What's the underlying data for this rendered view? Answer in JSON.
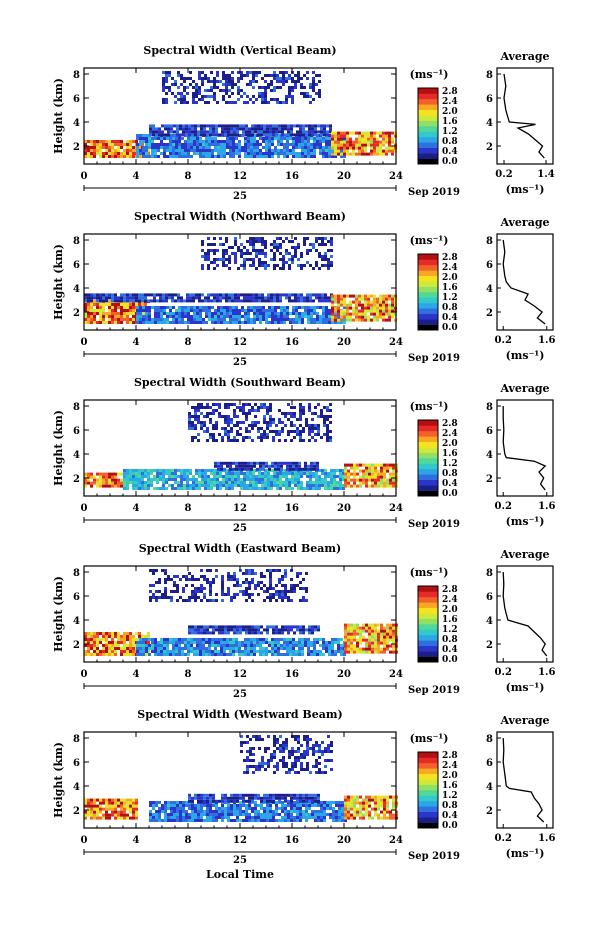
{
  "figure": {
    "x_axis_title": "Local Time",
    "date_label": "Sep 2019",
    "day_label": "25",
    "colorbar_unit": "(ms⁻¹)",
    "colorbar_ticks": [
      "0.0",
      "0.4",
      "0.8",
      "1.2",
      "1.6",
      "2.0",
      "2.4",
      "2.8"
    ],
    "colorscale": [
      "#000000",
      "#1b1f8a",
      "#2b35c9",
      "#2f6fe0",
      "#2ba6e6",
      "#33c9c9",
      "#4fd89a",
      "#8fe064",
      "#d0e83a",
      "#f6e21f",
      "#f9a823",
      "#f2612a",
      "#e52a2a",
      "#b40f12"
    ],
    "x_ticks": [
      "0",
      "4",
      "8",
      "12",
      "16",
      "20",
      "24"
    ],
    "y_ticks": [
      "2",
      "4",
      "6",
      "8"
    ],
    "avg_y_ticks": [
      "2",
      "4",
      "6",
      "8"
    ]
  },
  "panels": [
    {
      "title": "Spectral Width (Vertical Beam)",
      "ylabel": "Height (km)",
      "avg_title": "Average",
      "avg_xlabel": "(ms⁻¹)",
      "avg_xticks": [
        "0.2",
        "1.4"
      ]
    },
    {
      "title": "Spectral Width (Northward Beam)",
      "ylabel": "Height (km)",
      "avg_title": "Average",
      "avg_xlabel": "(ms⁻¹)",
      "avg_xticks": [
        "0.2",
        "1.6"
      ]
    },
    {
      "title": "Spectral Width (Southward Beam)",
      "ylabel": "Height (km)",
      "avg_title": "Average",
      "avg_xlabel": "(ms⁻¹)",
      "avg_xticks": [
        "0.2",
        "1.6"
      ]
    },
    {
      "title": "Spectral Width (Eastward Beam)",
      "ylabel": "Height (km)",
      "avg_title": "Average",
      "avg_xlabel": "(ms⁻¹)",
      "avg_xticks": [
        "0.2",
        "1.6"
      ]
    },
    {
      "title": "Spectral Width (Westward Beam)",
      "ylabel": "Height (km)",
      "avg_title": "Average",
      "avg_xlabel": "(ms⁻¹)",
      "avg_xticks": [
        "0.2",
        "1.6"
      ]
    }
  ],
  "chart_data": [
    {
      "type": "heatmap",
      "title": "Spectral Width (Vertical Beam)",
      "xlabel": "",
      "ylabel": "Height (km)",
      "xlim": [
        0,
        24
      ],
      "ylim": [
        0.5,
        8.5
      ],
      "clim": [
        0,
        3.0
      ],
      "layers": [
        {
          "t0": 0,
          "t1": 5,
          "h0": 1.0,
          "h1": 2.5,
          "width": 2.4
        },
        {
          "t0": 4,
          "t1": 20,
          "h0": 1.0,
          "h1": 2.8,
          "width": 0.6
        },
        {
          "t0": 5,
          "t1": 19,
          "h0": 2.8,
          "h1": 3.6,
          "width": 0.3
        },
        {
          "t0": 19,
          "t1": 24,
          "h0": 1.2,
          "h1": 3.2,
          "width": 2.3
        },
        {
          "t0": 6,
          "t1": 18,
          "h0": 5.5,
          "h1": 8.2,
          "width": 0.2
        }
      ],
      "average": {
        "height": [
          1.0,
          1.5,
          2.0,
          2.5,
          3.0,
          3.5,
          3.8,
          4.0,
          4.5,
          5.0,
          6.0,
          7.0,
          8.0
        ],
        "width": [
          1.35,
          1.2,
          1.3,
          1.1,
          0.9,
          0.6,
          1.1,
          0.35,
          0.3,
          0.25,
          0.2,
          0.25,
          0.2
        ],
        "xlim": [
          0.0,
          1.6
        ]
      }
    },
    {
      "type": "heatmap",
      "title": "Spectral Width (Northward Beam)",
      "xlabel": "",
      "ylabel": "Height (km)",
      "xlim": [
        0,
        24
      ],
      "ylim": [
        0.5,
        8.5
      ],
      "clim": [
        0,
        3.0
      ],
      "layers": [
        {
          "t0": 0,
          "t1": 5,
          "h0": 1.0,
          "h1": 2.8,
          "width": 2.4
        },
        {
          "t0": 4,
          "t1": 20,
          "h0": 1.0,
          "h1": 2.4,
          "width": 0.6
        },
        {
          "t0": 0,
          "t1": 19,
          "h0": 2.8,
          "h1": 3.4,
          "width": 0.3
        },
        {
          "t0": 19,
          "t1": 24,
          "h0": 1.2,
          "h1": 3.3,
          "width": 2.2
        },
        {
          "t0": 9,
          "t1": 19,
          "h0": 5.5,
          "h1": 8.2,
          "width": 0.2
        }
      ],
      "average": {
        "height": [
          1.0,
          1.5,
          2.0,
          2.5,
          3.0,
          3.5,
          4.0,
          4.5,
          5.0,
          6.0,
          7.0,
          8.0
        ],
        "width": [
          1.55,
          1.3,
          1.45,
          1.2,
          0.9,
          1.0,
          0.45,
          0.3,
          0.25,
          0.2,
          0.25,
          0.2
        ],
        "xlim": [
          0.0,
          1.8
        ]
      }
    },
    {
      "type": "heatmap",
      "title": "Spectral Width (Southward Beam)",
      "xlabel": "",
      "ylabel": "Height (km)",
      "xlim": [
        0,
        24
      ],
      "ylim": [
        0.5,
        8.5
      ],
      "clim": [
        0,
        3.0
      ],
      "layers": [
        {
          "t0": 0,
          "t1": 3,
          "h0": 1.2,
          "h1": 2.4,
          "width": 2.4
        },
        {
          "t0": 3,
          "t1": 20,
          "h0": 1.0,
          "h1": 2.6,
          "width": 0.9
        },
        {
          "t0": 10,
          "t1": 18,
          "h0": 2.6,
          "h1": 3.2,
          "width": 0.3
        },
        {
          "t0": 20,
          "t1": 24,
          "h0": 1.2,
          "h1": 3.2,
          "width": 2.2
        },
        {
          "t0": 8,
          "t1": 19,
          "h0": 5.0,
          "h1": 8.2,
          "width": 0.2
        }
      ],
      "average": {
        "height": [
          1.0,
          1.5,
          2.0,
          2.5,
          3.0,
          3.4,
          3.7,
          4.0,
          5.0,
          6.0,
          7.0,
          8.0
        ],
        "width": [
          1.55,
          1.4,
          1.5,
          1.35,
          1.55,
          1.2,
          0.3,
          0.25,
          0.2,
          0.22,
          0.2,
          0.2
        ],
        "xlim": [
          0.0,
          1.8
        ]
      }
    },
    {
      "type": "heatmap",
      "title": "Spectral Width (Eastward Beam)",
      "xlabel": "",
      "ylabel": "Height (km)",
      "xlim": [
        0,
        24
      ],
      "ylim": [
        0.5,
        8.5
      ],
      "clim": [
        0,
        3.0
      ],
      "layers": [
        {
          "t0": 0,
          "t1": 5,
          "h0": 1.0,
          "h1": 2.8,
          "width": 2.3
        },
        {
          "t0": 4,
          "t1": 20,
          "h0": 1.0,
          "h1": 2.4,
          "width": 0.7
        },
        {
          "t0": 8,
          "t1": 18,
          "h0": 2.8,
          "h1": 3.4,
          "width": 0.3
        },
        {
          "t0": 20,
          "t1": 24,
          "h0": 1.2,
          "h1": 3.6,
          "width": 2.2
        },
        {
          "t0": 5,
          "t1": 17,
          "h0": 5.5,
          "h1": 8.2,
          "width": 0.2
        }
      ],
      "average": {
        "height": [
          1.0,
          1.5,
          2.0,
          2.5,
          3.0,
          3.5,
          3.8,
          4.0,
          4.5,
          5.0,
          6.0,
          7.0,
          8.0
        ],
        "width": [
          1.6,
          1.45,
          1.55,
          1.4,
          1.2,
          1.0,
          0.6,
          0.35,
          0.3,
          0.25,
          0.2,
          0.22,
          0.2
        ],
        "xlim": [
          0.0,
          1.8
        ]
      }
    },
    {
      "type": "heatmap",
      "title": "Spectral Width (Westward Beam)",
      "xlabel": "Local Time",
      "ylabel": "Height (km)",
      "xlim": [
        0,
        24
      ],
      "ylim": [
        0.5,
        8.5
      ],
      "clim": [
        0,
        3.0
      ],
      "layers": [
        {
          "t0": 0,
          "t1": 4,
          "h0": 1.2,
          "h1": 2.8,
          "width": 2.4
        },
        {
          "t0": 5,
          "t1": 20,
          "h0": 1.0,
          "h1": 2.6,
          "width": 0.6
        },
        {
          "t0": 8,
          "t1": 18,
          "h0": 2.6,
          "h1": 3.3,
          "width": 0.3
        },
        {
          "t0": 20,
          "t1": 24,
          "h0": 1.2,
          "h1": 3.2,
          "width": 2.2
        },
        {
          "t0": 12,
          "t1": 19,
          "h0": 5.0,
          "h1": 8.2,
          "width": 0.2
        }
      ],
      "average": {
        "height": [
          1.0,
          1.5,
          2.0,
          2.5,
          3.0,
          3.5,
          3.8,
          4.0,
          5.0,
          6.0,
          7.0,
          8.0
        ],
        "width": [
          1.5,
          1.3,
          1.45,
          1.35,
          1.2,
          1.1,
          0.4,
          0.3,
          0.25,
          0.2,
          0.22,
          0.2
        ],
        "xlim": [
          0.0,
          1.8
        ]
      }
    }
  ]
}
